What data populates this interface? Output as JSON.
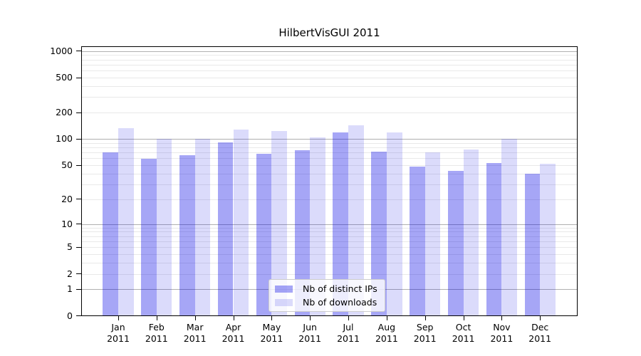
{
  "figure": {
    "title": "HilbertVisGUI 2011"
  },
  "legend": {
    "items": [
      {
        "label": "Nb of distinct IPs"
      },
      {
        "label": "Nb of downloads"
      }
    ]
  },
  "chart_data": {
    "type": "bar",
    "title": "HilbertVisGUI 2011",
    "categories": [
      "Jan 2011",
      "Feb 2011",
      "Mar 2011",
      "Apr 2011",
      "May 2011",
      "Jun 2011",
      "Jul 2011",
      "Aug 2011",
      "Sep 2011",
      "Oct 2011",
      "Nov 2011",
      "Dec 2011"
    ],
    "series": [
      {
        "name": "Nb of distinct IPs",
        "color": "rgba(0,0,230,0.35)",
        "values": [
          70,
          59,
          65,
          91,
          68,
          74,
          118,
          71,
          48,
          43,
          53,
          40
        ]
      },
      {
        "name": "Nb of downloads",
        "color": "rgba(0,0,230,0.14)",
        "values": [
          134,
          100,
          100,
          128,
          123,
          105,
          143,
          119,
          70,
          76,
          101,
          52
        ]
      }
    ],
    "xlabel": "",
    "ylabel": "",
    "yscale": "log1p",
    "yticks": [
      0,
      1,
      2,
      5,
      10,
      20,
      50,
      100,
      200,
      500,
      1000
    ],
    "ylim": [
      0,
      1110
    ],
    "grid": {
      "on": true,
      "major_lines": [
        1,
        10,
        100,
        1000
      ],
      "minor_lines": [
        2,
        3,
        4,
        5,
        6,
        7,
        8,
        9,
        20,
        30,
        40,
        50,
        60,
        70,
        80,
        90,
        200,
        300,
        400,
        500,
        600,
        700,
        800,
        900
      ],
      "major_color": "#b0b0b0",
      "minor_color": "#e9e9e9"
    },
    "legend_position": "lower center",
    "axis_color": "#000000",
    "background_color": "#ffffff"
  }
}
